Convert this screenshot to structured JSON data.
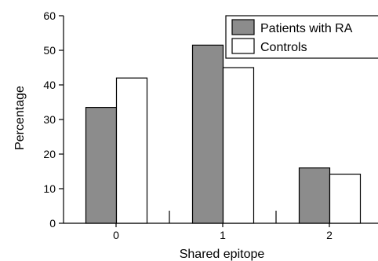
{
  "chart_data": {
    "type": "bar",
    "categories": [
      "0",
      "1",
      "2"
    ],
    "series": [
      {
        "name": "Patients with RA",
        "values": [
          33.5,
          51.5,
          16
        ],
        "color": "#8c8c8c"
      },
      {
        "name": "Controls",
        "values": [
          42,
          45,
          14.2
        ],
        "color": "#ffffff"
      }
    ],
    "xlabel": "Shared epitope",
    "ylabel": "Percentage",
    "ylim": [
      0,
      60
    ],
    "yticks": [
      0,
      10,
      20,
      30,
      40,
      50,
      60
    ],
    "grid": false,
    "legend_position": "top-right"
  }
}
